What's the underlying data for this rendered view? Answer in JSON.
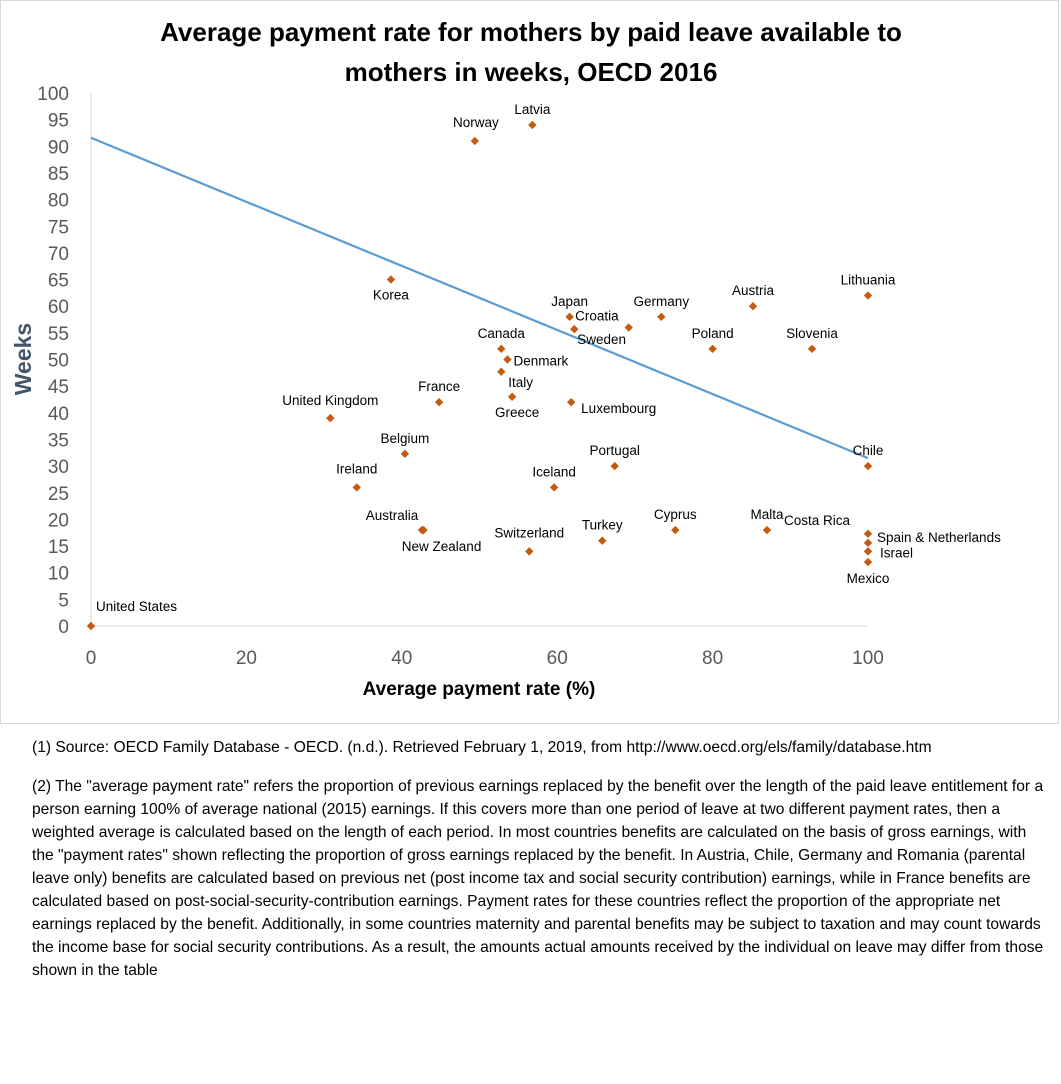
{
  "chart_data": {
    "type": "scatter",
    "title_lines": [
      "Average payment rate for mothers by  paid leave available to",
      "mothers in weeks, OECD 2016"
    ],
    "xlabel": "Average payment rate (%)",
    "ylabel": "Weeks",
    "xlim": [
      0,
      100
    ],
    "ylim": [
      0,
      100
    ],
    "x_ticks": [
      "0",
      "20",
      "40",
      "60",
      "80",
      "100"
    ],
    "y_ticks": [
      "0",
      "5",
      "10",
      "15",
      "20",
      "25",
      "30",
      "35",
      "40",
      "45",
      "50",
      "55",
      "60",
      "65",
      "70",
      "75",
      "80",
      "85",
      "90",
      "95",
      "100"
    ],
    "grid": false,
    "marker_color": "#c55a11",
    "trendline_color": "#5b9bd5",
    "trendline": {
      "x": [
        0,
        100
      ],
      "y": [
        91.6,
        31.5
      ]
    },
    "points": [
      {
        "label": "United States",
        "x": 0,
        "y": 0,
        "label_pos": "above-right"
      },
      {
        "label": "Norway",
        "x": 49.4,
        "y": 91,
        "label_pos": "above-left"
      },
      {
        "label": "Latvia",
        "x": 56.8,
        "y": 94,
        "label_pos": "above"
      },
      {
        "label": "Korea",
        "x": 38.6,
        "y": 65,
        "label_pos": "below"
      },
      {
        "label": "Japan",
        "x": 61.6,
        "y": 58,
        "label_pos": "above"
      },
      {
        "label": "Germany",
        "x": 73.4,
        "y": 58,
        "label_pos": "above"
      },
      {
        "label": "Austria",
        "x": 85.2,
        "y": 60,
        "label_pos": "above"
      },
      {
        "label": "Lithuania",
        "x": 100,
        "y": 62,
        "label_pos": "above"
      },
      {
        "label": "Croatia",
        "x": 69.2,
        "y": 56,
        "label_pos": "above-left"
      },
      {
        "label": "Sweden",
        "x": 62.2,
        "y": 55.7,
        "label_pos": "below-right"
      },
      {
        "label": "Poland",
        "x": 80,
        "y": 52,
        "label_pos": "above"
      },
      {
        "label": "Slovenia",
        "x": 92.8,
        "y": 52,
        "label_pos": "above"
      },
      {
        "label": "Canada",
        "x": 52.8,
        "y": 52,
        "label_pos": "above"
      },
      {
        "label": "Denmark",
        "x": 53.6,
        "y": 50,
        "label_pos": "right"
      },
      {
        "label": "Italy",
        "x": 52.8,
        "y": 47.7,
        "label_pos": "below-right"
      },
      {
        "label": "France",
        "x": 44.8,
        "y": 42,
        "label_pos": "above"
      },
      {
        "label": "Greece",
        "x": 54.2,
        "y": 43,
        "label_pos": "below"
      },
      {
        "label": "Luxembourg",
        "x": 61.8,
        "y": 42,
        "label_pos": "right"
      },
      {
        "label": "United Kingdom",
        "x": 30.8,
        "y": 39,
        "label_pos": "above"
      },
      {
        "label": "Belgium",
        "x": 40.4,
        "y": 32.3,
        "label_pos": "above"
      },
      {
        "label": "Portugal",
        "x": 67.4,
        "y": 30,
        "label_pos": "above"
      },
      {
        "label": "Chile",
        "x": 100,
        "y": 30,
        "label_pos": "above"
      },
      {
        "label": "Ireland",
        "x": 34.2,
        "y": 26,
        "label_pos": "above-left"
      },
      {
        "label": "Iceland",
        "x": 59.6,
        "y": 26,
        "label_pos": "above"
      },
      {
        "label": "Australia",
        "x": 42.6,
        "y": 18,
        "label_pos": "above-left"
      },
      {
        "label": "New Zealand",
        "x": 42.8,
        "y": 18,
        "label_pos": "below"
      },
      {
        "label": "Cyprus",
        "x": 75.2,
        "y": 18,
        "label_pos": "above"
      },
      {
        "label": "Malta",
        "x": 87,
        "y": 18,
        "label_pos": "above"
      },
      {
        "label": "Costa Rica",
        "x": 100,
        "y": 17.3,
        "label_pos": "above-left"
      },
      {
        "label": "Turkey",
        "x": 65.8,
        "y": 16,
        "label_pos": "above"
      },
      {
        "label": "Switzerland",
        "x": 56.4,
        "y": 14,
        "label_pos": "above"
      },
      {
        "label": "Spain & Netherlands",
        "x": 100,
        "y": 15.6,
        "label_pos": "above-right"
      },
      {
        "label": "Israel",
        "x": 100,
        "y": 14,
        "label_pos": "right"
      },
      {
        "label": "Mexico",
        "x": 100,
        "y": 12,
        "label_pos": "below"
      }
    ]
  },
  "notes": {
    "source": "(1) Source: OECD Family Database - OECD. (n.d.). Retrieved February 1, 2019, from http://www.oecd.org/els/family/database.htm",
    "definition": "(2) The \"average payment rate\" refers the proportion of previous earnings replaced by the benefit over the length of the paid leave entitlement for a person earning 100% of average national (2015) earnings. If this covers more than one period of leave at two different payment rates, then a weighted average is calculated based on the length of each period. In most countries benefits are calculated on the basis of gross earnings, with the \"payment rates\" shown reflecting the proportion of gross earnings replaced by the benefit. In Austria, Chile, Germany and Romania (parental leave only) benefits are calculated based on previous net (post income tax and social security contribution) earnings, while in France benefits are calculated based on post-social-security-contribution earnings. Payment rates for these countries reflect the proportion of the appropriate net earnings replaced by the benefit. Additionally, in some countries maternity and parental benefits may be subject to taxation and may count towards the income base for social security contributions. As a result, the amounts actual amounts received by the individual on leave may differ from those shown in the table"
  }
}
